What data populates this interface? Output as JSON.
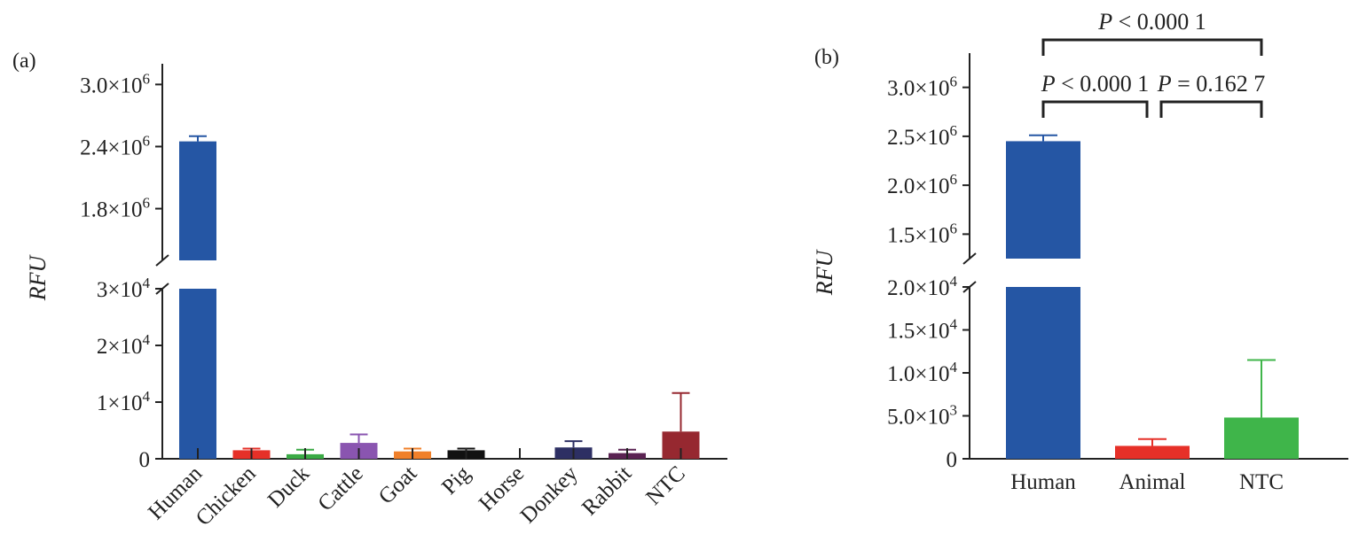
{
  "chart_data": [
    {
      "type": "bar",
      "panel_label": "(a)",
      "ylabel": "RFU",
      "axis_break": true,
      "categories": [
        "Human",
        "Chicken",
        "Duck",
        "Cattle",
        "Goat",
        "Pig",
        "Horse",
        "Donkey",
        "Rabbit",
        "NTC"
      ],
      "values": [
        2450000,
        1500,
        800,
        2800,
        1300,
        1500,
        0,
        2000,
        1000,
        4800
      ],
      "errors": [
        50000,
        300,
        800,
        1500,
        500,
        300,
        0,
        1100,
        600,
        6800
      ],
      "colors": [
        "#2556a4",
        "#e63028",
        "#3aaa45",
        "#8a55b0",
        "#f0802a",
        "#111111",
        "#ffffff",
        "#2d2f63",
        "#5a2352",
        "#962830"
      ],
      "upper_ylim": [
        1300000,
        3200000
      ],
      "lower_ylim": [
        0,
        30000
      ],
      "upper_ticks": [
        1800000,
        2400000,
        3000000
      ],
      "upper_tick_labels": [
        [
          "1.8×10",
          "6"
        ],
        [
          "2.4×10",
          "6"
        ],
        [
          "3.0×10",
          "6"
        ]
      ],
      "lower_ticks": [
        0,
        10000,
        20000,
        30000
      ],
      "lower_tick_labels": [
        [
          "0",
          ""
        ],
        [
          "1×10",
          "4"
        ],
        [
          "2×10",
          "4"
        ],
        [
          "3×10",
          "4"
        ]
      ]
    },
    {
      "type": "bar",
      "panel_label": "(b)",
      "ylabel": "RFU",
      "axis_break": true,
      "categories": [
        "Human",
        "Animal",
        "NTC"
      ],
      "values": [
        2450000,
        1500,
        4800
      ],
      "errors": [
        60000,
        800,
        6700
      ],
      "colors": [
        "#2556a4",
        "#e63028",
        "#3fb54a"
      ],
      "upper_ylim": [
        1250000,
        3350000
      ],
      "lower_ylim": [
        0,
        20000
      ],
      "upper_ticks": [
        1500000,
        2000000,
        2500000,
        3000000
      ],
      "upper_tick_labels": [
        [
          "1.5×10",
          "6"
        ],
        [
          "2.0×10",
          "6"
        ],
        [
          "2.5×10",
          "6"
        ],
        [
          "3.0×10",
          "6"
        ]
      ],
      "lower_ticks": [
        0,
        5000,
        10000,
        15000,
        20000
      ],
      "lower_tick_labels": [
        [
          "0",
          ""
        ],
        [
          "5.0×10",
          "3"
        ],
        [
          "1.0×10",
          "4"
        ],
        [
          "1.5×10",
          "4"
        ],
        [
          "2.0×10",
          "4"
        ]
      ],
      "comparisons": [
        {
          "from": 0,
          "to": 2,
          "p": "0.000 1",
          "op": "<"
        },
        {
          "from": 0,
          "to": 1,
          "p": "0.000 1",
          "op": "<"
        },
        {
          "from": 1,
          "to": 2,
          "p": "0.162 7",
          "op": "="
        }
      ]
    }
  ]
}
